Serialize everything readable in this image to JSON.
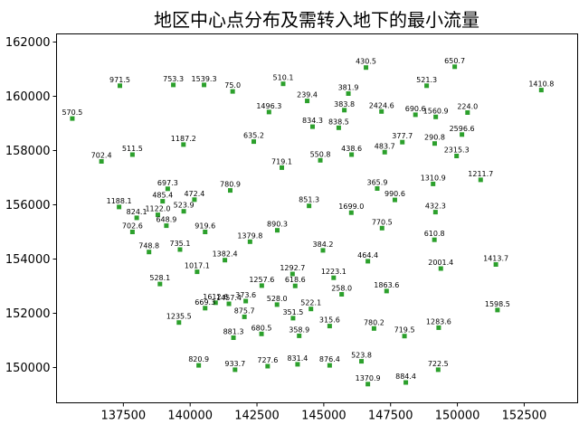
{
  "chart_data": {
    "type": "scatter",
    "title": "地区中心点分布及需转入地下的最小流量",
    "xlabel": "",
    "ylabel": "",
    "xlim": [
      135000,
      154500
    ],
    "ylim": [
      148700,
      162300
    ],
    "xticks": [
      137500,
      140000,
      142500,
      145000,
      147500,
      150000,
      152500
    ],
    "xtick_labels": [
      "137500",
      "140000",
      "142500",
      "145000",
      "147500",
      "150000",
      "152500"
    ],
    "yticks": [
      150000,
      152000,
      154000,
      156000,
      158000,
      160000,
      162000
    ],
    "ytick_labels": [
      "150000",
      "152000",
      "154000",
      "156000",
      "158000",
      "160000",
      "162000"
    ],
    "grid": false,
    "marker_color": "#2ca02c",
    "points": [
      {
        "x": 135590,
        "y": 159180,
        "label": "570.5"
      },
      {
        "x": 137370,
        "y": 160390,
        "label": "971.5"
      },
      {
        "x": 139370,
        "y": 160420,
        "label": "753.3"
      },
      {
        "x": 140520,
        "y": 160420,
        "label": "1539.3"
      },
      {
        "x": 141590,
        "y": 160180,
        "label": "75.0"
      },
      {
        "x": 143480,
        "y": 160460,
        "label": "510.1"
      },
      {
        "x": 146580,
        "y": 161060,
        "label": "430.5"
      },
      {
        "x": 149900,
        "y": 161090,
        "label": "650.7"
      },
      {
        "x": 148850,
        "y": 160390,
        "label": "521.3"
      },
      {
        "x": 153140,
        "y": 160230,
        "label": "1410.8"
      },
      {
        "x": 136680,
        "y": 157600,
        "label": "702.4"
      },
      {
        "x": 137840,
        "y": 157850,
        "label": "511.5"
      },
      {
        "x": 139750,
        "y": 158220,
        "label": "1187.2"
      },
      {
        "x": 142380,
        "y": 158330,
        "label": "635.2"
      },
      {
        "x": 142950,
        "y": 159420,
        "label": "1496.3"
      },
      {
        "x": 144380,
        "y": 159830,
        "label": "239.4"
      },
      {
        "x": 145920,
        "y": 160100,
        "label": "381.9"
      },
      {
        "x": 145770,
        "y": 159490,
        "label": "383.8"
      },
      {
        "x": 147160,
        "y": 159440,
        "label": "2424.6"
      },
      {
        "x": 148430,
        "y": 159320,
        "label": "690.6"
      },
      {
        "x": 149190,
        "y": 159240,
        "label": "1560.9"
      },
      {
        "x": 150380,
        "y": 159400,
        "label": "224.0"
      },
      {
        "x": 144580,
        "y": 158880,
        "label": "834.3"
      },
      {
        "x": 145560,
        "y": 158840,
        "label": "838.5"
      },
      {
        "x": 150170,
        "y": 158590,
        "label": "2596.6"
      },
      {
        "x": 147940,
        "y": 158310,
        "label": "377.7"
      },
      {
        "x": 149150,
        "y": 158260,
        "label": "290.8"
      },
      {
        "x": 146040,
        "y": 157850,
        "label": "438.6"
      },
      {
        "x": 147280,
        "y": 157940,
        "label": "483.7"
      },
      {
        "x": 144870,
        "y": 157640,
        "label": "550.8"
      },
      {
        "x": 143430,
        "y": 157370,
        "label": "719.1"
      },
      {
        "x": 149970,
        "y": 157800,
        "label": "2315.3"
      },
      {
        "x": 150870,
        "y": 156920,
        "label": "1211.7"
      },
      {
        "x": 149090,
        "y": 156770,
        "label": "1310.9"
      },
      {
        "x": 147000,
        "y": 156600,
        "label": "365.9"
      },
      {
        "x": 147660,
        "y": 156180,
        "label": "990.6"
      },
      {
        "x": 149180,
        "y": 155730,
        "label": "432.3"
      },
      {
        "x": 139160,
        "y": 156590,
        "label": "697.3"
      },
      {
        "x": 141500,
        "y": 156530,
        "label": "780.9"
      },
      {
        "x": 138970,
        "y": 156130,
        "label": "485.4"
      },
      {
        "x": 140160,
        "y": 156190,
        "label": "472.4"
      },
      {
        "x": 139760,
        "y": 155760,
        "label": "523.9"
      },
      {
        "x": 144450,
        "y": 155960,
        "label": "851.3"
      },
      {
        "x": 137340,
        "y": 155920,
        "label": "1188.1"
      },
      {
        "x": 138000,
        "y": 155520,
        "label": "824.1"
      },
      {
        "x": 138790,
        "y": 155630,
        "label": "1122.0"
      },
      {
        "x": 139110,
        "y": 155230,
        "label": "648.9"
      },
      {
        "x": 146030,
        "y": 155710,
        "label": "1699.0"
      },
      {
        "x": 147180,
        "y": 155140,
        "label": "770.5"
      },
      {
        "x": 137840,
        "y": 155000,
        "label": "702.6"
      },
      {
        "x": 140560,
        "y": 155000,
        "label": "919.6"
      },
      {
        "x": 143260,
        "y": 155060,
        "label": "890.3"
      },
      {
        "x": 142240,
        "y": 154640,
        "label": "1379.8"
      },
      {
        "x": 138460,
        "y": 154260,
        "label": "748.8"
      },
      {
        "x": 139620,
        "y": 154350,
        "label": "735.1"
      },
      {
        "x": 144970,
        "y": 154320,
        "label": "384.2"
      },
      {
        "x": 149140,
        "y": 154710,
        "label": "610.8"
      },
      {
        "x": 141300,
        "y": 153960,
        "label": "1382.4"
      },
      {
        "x": 146650,
        "y": 153920,
        "label": "464.4"
      },
      {
        "x": 140260,
        "y": 153530,
        "label": "1017.1"
      },
      {
        "x": 149380,
        "y": 153650,
        "label": "2001.4"
      },
      {
        "x": 151440,
        "y": 153800,
        "label": "1413.7"
      },
      {
        "x": 143830,
        "y": 153450,
        "label": "1292.7"
      },
      {
        "x": 145370,
        "y": 153310,
        "label": "1223.1"
      },
      {
        "x": 138870,
        "y": 153080,
        "label": "528.1"
      },
      {
        "x": 142680,
        "y": 153020,
        "label": "1257.6"
      },
      {
        "x": 143930,
        "y": 153010,
        "label": "618.6"
      },
      {
        "x": 142080,
        "y": 152450,
        "label": "373.6"
      },
      {
        "x": 145670,
        "y": 152700,
        "label": "258.0"
      },
      {
        "x": 147350,
        "y": 152820,
        "label": "1863.6"
      },
      {
        "x": 141450,
        "y": 152350,
        "label": "1457.4"
      },
      {
        "x": 140950,
        "y": 152390,
        "label": "1612.6"
      },
      {
        "x": 140560,
        "y": 152190,
        "label": "669.3"
      },
      {
        "x": 143250,
        "y": 152320,
        "label": "528.0"
      },
      {
        "x": 144520,
        "y": 152160,
        "label": "522.1"
      },
      {
        "x": 142030,
        "y": 151870,
        "label": "875.7"
      },
      {
        "x": 143850,
        "y": 151820,
        "label": "351.5"
      },
      {
        "x": 151500,
        "y": 152120,
        "label": "1598.5"
      },
      {
        "x": 139580,
        "y": 151660,
        "label": "1235.5"
      },
      {
        "x": 145220,
        "y": 151530,
        "label": "315.6"
      },
      {
        "x": 146880,
        "y": 151440,
        "label": "780.2"
      },
      {
        "x": 148020,
        "y": 151160,
        "label": "719.5"
      },
      {
        "x": 149300,
        "y": 151470,
        "label": "1283.6"
      },
      {
        "x": 141620,
        "y": 151100,
        "label": "881.3"
      },
      {
        "x": 142670,
        "y": 151240,
        "label": "680.5"
      },
      {
        "x": 144080,
        "y": 151170,
        "label": "358.9"
      },
      {
        "x": 146410,
        "y": 150230,
        "label": "523.8"
      },
      {
        "x": 140320,
        "y": 150080,
        "label": "820.9"
      },
      {
        "x": 141680,
        "y": 149920,
        "label": "933.7"
      },
      {
        "x": 142900,
        "y": 150050,
        "label": "727.6"
      },
      {
        "x": 144020,
        "y": 150120,
        "label": "831.4"
      },
      {
        "x": 145220,
        "y": 150080,
        "label": "876.4"
      },
      {
        "x": 149280,
        "y": 149920,
        "label": "722.5"
      },
      {
        "x": 146650,
        "y": 149390,
        "label": "1370.9"
      },
      {
        "x": 148070,
        "y": 149450,
        "label": "884.4"
      }
    ]
  }
}
